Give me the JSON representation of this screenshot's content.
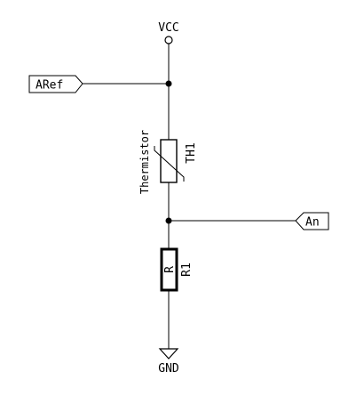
{
  "power": {
    "vcc_label": "VCC",
    "gnd_label": "GND"
  },
  "ports": {
    "aref_label": "ARef",
    "an_label": "An"
  },
  "thermistor": {
    "type_label": "Thermistor",
    "ref_label": "TH1"
  },
  "resistor": {
    "value_label": "R",
    "ref_label": "R1"
  }
}
